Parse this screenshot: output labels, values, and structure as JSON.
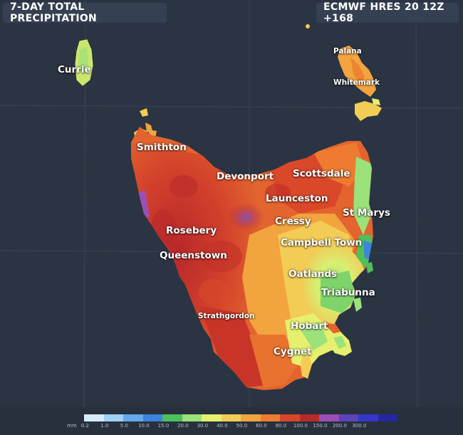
{
  "header": {
    "title": "7-DAY TOTAL PRECIPITATION",
    "model_run": "ECMWF HRES 20 12Z +168"
  },
  "places": {
    "currie": "Currie",
    "palana": "Palana",
    "whitemark": "Whitemark",
    "smithton": "Smithton",
    "devonport": "Devonport",
    "scottsdale": "Scottsdale",
    "launceston": "Launceston",
    "st_marys": "St Marys",
    "cressy": "Cressy",
    "rosebery": "Rosebery",
    "campbell_town": "Campbell Town",
    "queenstown": "Queenstown",
    "oatlands": "Oatlands",
    "triabunna": "Triabunna",
    "strathgordon": "Strathgordon",
    "hobart": "Hobart",
    "cygnet": "Cygnet"
  },
  "legend": {
    "unit": "mm",
    "ticks": [
      "0.2",
      "1.0",
      "5.0",
      "10.0",
      "15.0",
      "20.0",
      "30.0",
      "40.0",
      "50.0",
      "60.0",
      "80.0",
      "100.0",
      "150.0",
      "200.0",
      "300.0"
    ],
    "colors": [
      "#d6ecfb",
      "#9fd1f4",
      "#63a9ec",
      "#3c84de",
      "#4fbf5a",
      "#9be27a",
      "#e6f06e",
      "#f3cc55",
      "#f2a43f",
      "#ee7b30",
      "#d8452a",
      "#b82a25",
      "#9b4fb6",
      "#5a45b8",
      "#3437c9",
      "#2427a0"
    ]
  },
  "colors": {
    "background": "#2b3442",
    "panel": "#354052"
  }
}
